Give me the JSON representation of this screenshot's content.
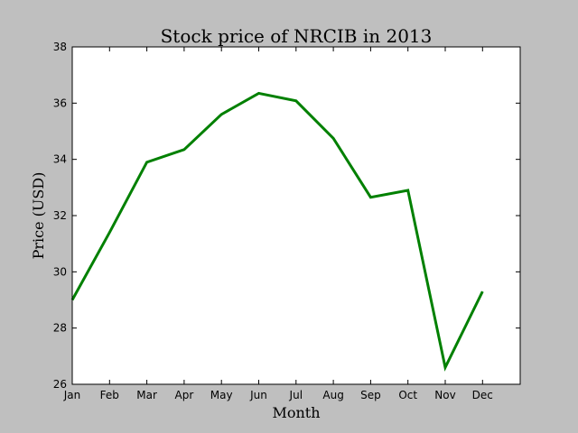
{
  "chart_data": {
    "type": "line",
    "title": "Stock price of NRCIB in 2013",
    "xlabel": "Month",
    "ylabel": "Price (USD)",
    "categories": [
      "Jan",
      "Feb",
      "Mar",
      "Apr",
      "May",
      "Jun",
      "Jul",
      "Aug",
      "Sep",
      "Oct",
      "Nov",
      "Dec"
    ],
    "series": [
      {
        "values": [
          29.0,
          31.4,
          33.9,
          34.35,
          35.6,
          36.35,
          36.08,
          34.75,
          32.65,
          32.9,
          26.6,
          29.3
        ],
        "color": "#008000"
      }
    ],
    "ylim": [
      26,
      38
    ],
    "yticks": [
      "26",
      "28",
      "30",
      "32",
      "34",
      "36",
      "38"
    ],
    "grid": false,
    "legend": "none"
  }
}
